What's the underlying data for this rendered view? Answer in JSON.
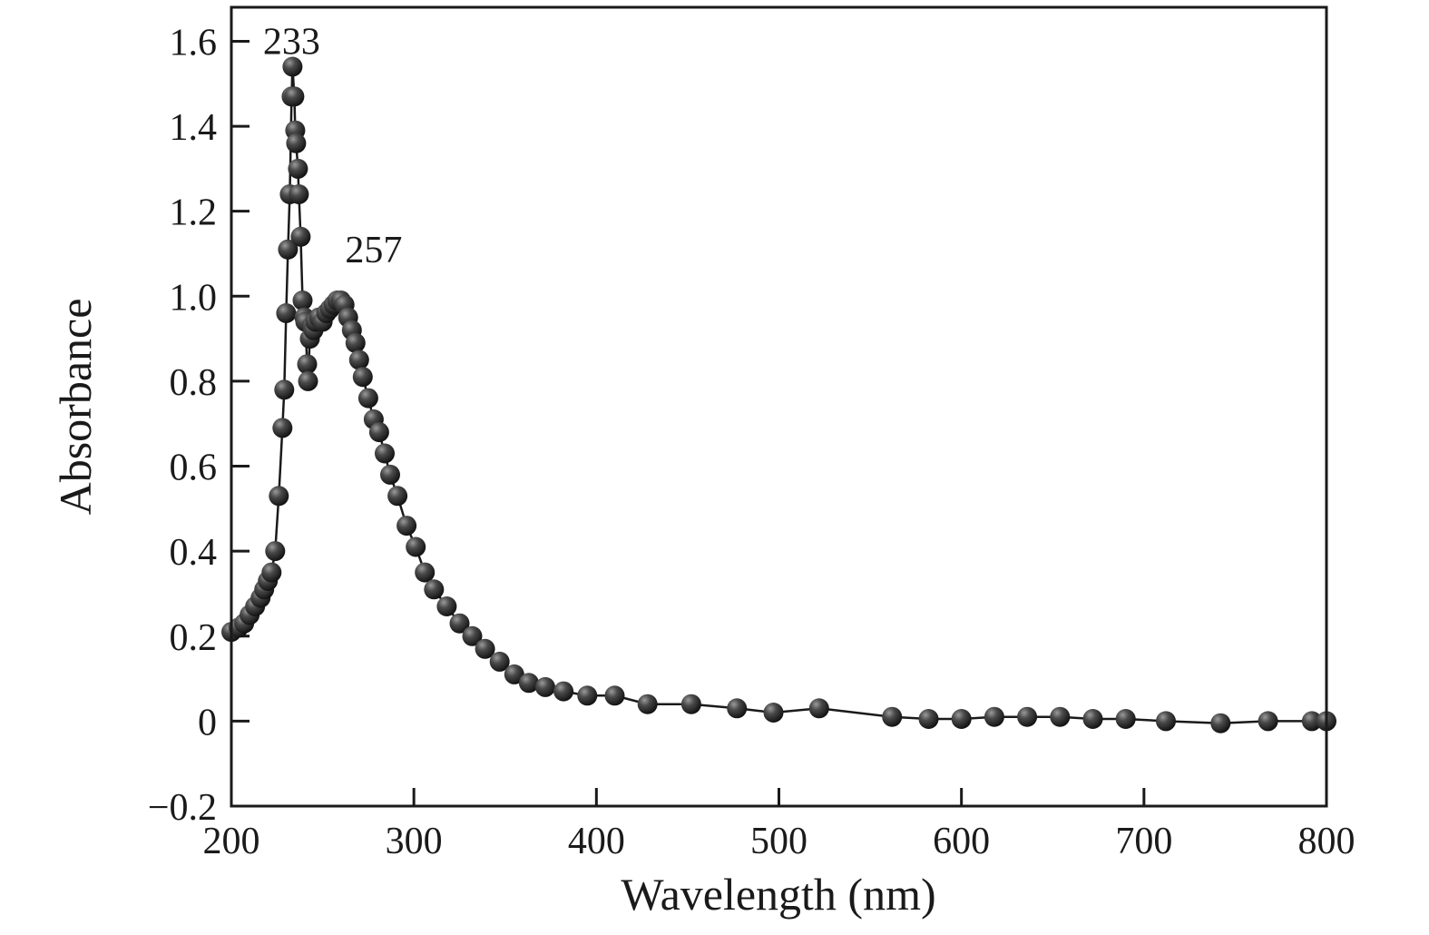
{
  "chart_data": {
    "type": "scatter",
    "title": "",
    "xlabel": "Wavelength (nm)",
    "ylabel": "Absorbance",
    "xlim": [
      200,
      800
    ],
    "ylim": [
      -0.2,
      1.68
    ],
    "grid": false,
    "legend": "none",
    "xticks": [
      {
        "v": 200,
        "label": "200"
      },
      {
        "v": 300,
        "label": "300"
      },
      {
        "v": 400,
        "label": "400"
      },
      {
        "v": 500,
        "label": "500"
      },
      {
        "v": 600,
        "label": "600"
      },
      {
        "v": 700,
        "label": "700"
      },
      {
        "v": 800,
        "label": "800"
      }
    ],
    "yticks": [
      {
        "v": -0.2,
        "label": "−0.2"
      },
      {
        "v": 0.0,
        "label": "0"
      },
      {
        "v": 0.2,
        "label": "0.2"
      },
      {
        "v": 0.4,
        "label": "0.4"
      },
      {
        "v": 0.6,
        "label": "0.6"
      },
      {
        "v": 0.8,
        "label": "0.8"
      },
      {
        "v": 1.0,
        "label": "1.0"
      },
      {
        "v": 1.2,
        "label": "1.2"
      },
      {
        "v": 1.4,
        "label": "1.4"
      },
      {
        "v": 1.6,
        "label": "1.6"
      }
    ],
    "annotations": [
      {
        "text": "233",
        "x": 233,
        "y": 1.57
      },
      {
        "text": "257",
        "x": 278,
        "y": 1.08
      }
    ],
    "series": [
      {
        "name": "absorbance-spectrum",
        "marker": "sphere",
        "line_color": "#1a1a1a",
        "points": [
          [
            200,
            0.21
          ],
          [
            204,
            0.22
          ],
          [
            207,
            0.23
          ],
          [
            210,
            0.25
          ],
          [
            213,
            0.27
          ],
          [
            216,
            0.29
          ],
          [
            218,
            0.31
          ],
          [
            220,
            0.33
          ],
          [
            222,
            0.35
          ],
          [
            224,
            0.4
          ],
          [
            226,
            0.53
          ],
          [
            228,
            0.69
          ],
          [
            229,
            0.78
          ],
          [
            230,
            0.96
          ],
          [
            231,
            1.11
          ],
          [
            232,
            1.24
          ],
          [
            233,
            1.47
          ],
          [
            233.5,
            1.54
          ],
          [
            234.5,
            1.47
          ],
          [
            235,
            1.39
          ],
          [
            235.5,
            1.36
          ],
          [
            236.5,
            1.3
          ],
          [
            237,
            1.24
          ],
          [
            238,
            1.14
          ],
          [
            239,
            0.99
          ],
          [
            240,
            0.95
          ],
          [
            240.5,
            0.94
          ],
          [
            241.5,
            0.84
          ],
          [
            242,
            0.8
          ],
          [
            243,
            0.9
          ],
          [
            244,
            0.93
          ],
          [
            245,
            0.92
          ],
          [
            246,
            0.94
          ],
          [
            248,
            0.95
          ],
          [
            250,
            0.94
          ],
          [
            252,
            0.96
          ],
          [
            254,
            0.97
          ],
          [
            256,
            0.98
          ],
          [
            258,
            0.99
          ],
          [
            260,
            0.99
          ],
          [
            262,
            0.98
          ],
          [
            264,
            0.95
          ],
          [
            266,
            0.92
          ],
          [
            268,
            0.89
          ],
          [
            270,
            0.85
          ],
          [
            272,
            0.81
          ],
          [
            275,
            0.76
          ],
          [
            278,
            0.71
          ],
          [
            281,
            0.68
          ],
          [
            284,
            0.63
          ],
          [
            287,
            0.58
          ],
          [
            291,
            0.53
          ],
          [
            296,
            0.46
          ],
          [
            301,
            0.41
          ],
          [
            306,
            0.35
          ],
          [
            311,
            0.31
          ],
          [
            318,
            0.27
          ],
          [
            325,
            0.23
          ],
          [
            332,
            0.2
          ],
          [
            339,
            0.17
          ],
          [
            347,
            0.14
          ],
          [
            355,
            0.11
          ],
          [
            363,
            0.09
          ],
          [
            372,
            0.08
          ],
          [
            382,
            0.07
          ],
          [
            395,
            0.06
          ],
          [
            410,
            0.06
          ],
          [
            428,
            0.04
          ],
          [
            452,
            0.04
          ],
          [
            477,
            0.03
          ],
          [
            497,
            0.02
          ],
          [
            522,
            0.03
          ],
          [
            562,
            0.01
          ],
          [
            582,
            0.005
          ],
          [
            600,
            0.005
          ],
          [
            618,
            0.01
          ],
          [
            636,
            0.01
          ],
          [
            654,
            0.01
          ],
          [
            672,
            0.005
          ],
          [
            690,
            0.005
          ],
          [
            712,
            0.0
          ],
          [
            742,
            -0.005
          ],
          [
            768,
            0.0
          ],
          [
            792,
            0.0
          ],
          [
            800,
            0.0
          ]
        ]
      }
    ]
  },
  "colors": {
    "background": "#ffffff",
    "axis": "#1a1a1a",
    "marker_dark": "#0d0d0d",
    "marker_mid": "#4a4a4a",
    "marker_light": "#9a9a9a"
  }
}
